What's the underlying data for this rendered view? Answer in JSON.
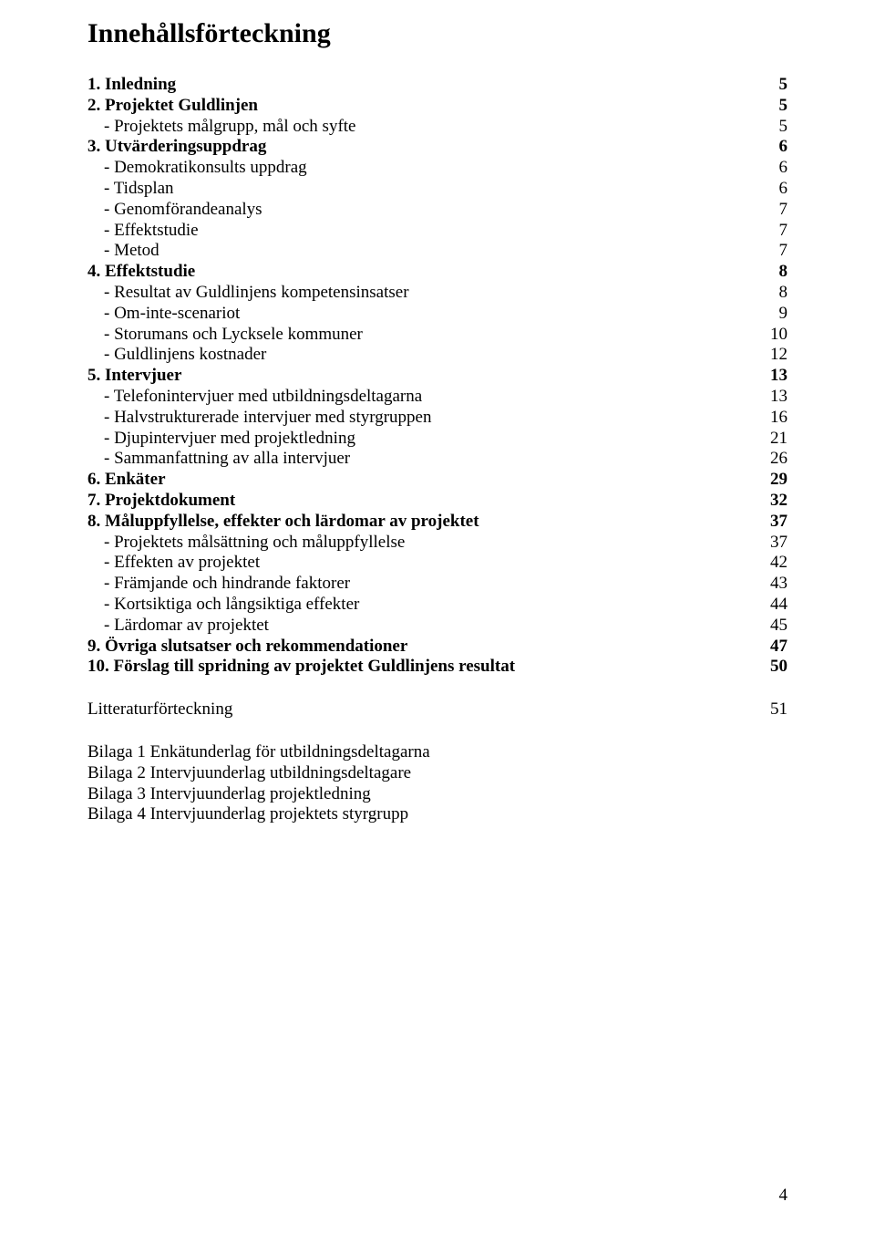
{
  "title": "Innehållsförteckning",
  "toc": [
    {
      "style": "bold",
      "label": "1. Inledning",
      "page": "5"
    },
    {
      "style": "bold",
      "label": "2. Projektet Guldlinjen",
      "page": "5"
    },
    {
      "style": "sub",
      "label": "- Projektets målgrupp, mål och syfte",
      "page": "5"
    },
    {
      "style": "bold",
      "label": "3. Utvärderingsuppdrag",
      "page": "6"
    },
    {
      "style": "sub",
      "label": "- Demokratikonsults uppdrag",
      "page": "6"
    },
    {
      "style": "sub",
      "label": "- Tidsplan",
      "page": "6"
    },
    {
      "style": "sub",
      "label": "- Genomförandeanalys",
      "page": "7"
    },
    {
      "style": "sub",
      "label": "- Effektstudie",
      "page": "7"
    },
    {
      "style": "sub",
      "label": "- Metod",
      "page": "7"
    },
    {
      "style": "bold",
      "label": "4. Effektstudie",
      "page": "8"
    },
    {
      "style": "sub",
      "label": "- Resultat av Guldlinjens kompetensinsatser",
      "page": "8"
    },
    {
      "style": "sub",
      "label": "- Om-inte-scenariot",
      "page": "9"
    },
    {
      "style": "sub",
      "label": "- Storumans och Lycksele kommuner",
      "page": "10"
    },
    {
      "style": "sub",
      "label": "- Guldlinjens kostnader",
      "page": "12"
    },
    {
      "style": "bold",
      "label": "5. Intervjuer",
      "page": "13"
    },
    {
      "style": "sub",
      "label": "- Telefonintervjuer med utbildningsdeltagarna",
      "page": "13"
    },
    {
      "style": "sub",
      "label": "- Halvstrukturerade intervjuer med styrgruppen",
      "page": "16"
    },
    {
      "style": "sub",
      "label": "- Djupintervjuer med projektledning",
      "page": "21"
    },
    {
      "style": "sub",
      "label": "- Sammanfattning av alla intervjuer",
      "page": "26"
    },
    {
      "style": "bold",
      "label": "6. Enkäter",
      "page": "29"
    },
    {
      "style": "bold",
      "label": "7. Projektdokument",
      "page": "32"
    },
    {
      "style": "bold",
      "label": "8. Måluppfyllelse, effekter och lärdomar av projektet",
      "page": "37"
    },
    {
      "style": "sub",
      "label": "- Projektets målsättning och måluppfyllelse",
      "page": "37"
    },
    {
      "style": "sub",
      "label": "- Effekten av projektet",
      "page": "42"
    },
    {
      "style": "sub",
      "label": "- Främjande och hindrande faktorer",
      "page": "43"
    },
    {
      "style": "sub",
      "label": "- Kortsiktiga och långsiktiga effekter",
      "page": "44"
    },
    {
      "style": "sub",
      "label": "- Lärdomar av projektet",
      "page": "45"
    },
    {
      "style": "bold",
      "label": "9. Övriga slutsatser och rekommendationer",
      "page": "47"
    },
    {
      "style": "bold",
      "label": "10. Förslag till spridning av projektet Guldlinjens resultat",
      "page": "50"
    }
  ],
  "lit": {
    "label": "Litteraturförteckning",
    "page": "51"
  },
  "appendices": [
    "Bilaga 1 Enkätunderlag för utbildningsdeltagarna",
    "Bilaga 2 Intervjuunderlag utbildningsdeltagare",
    "Bilaga 3 Intervjuunderlag projektledning",
    "Bilaga 4 Intervjuunderlag projektets styrgrupp"
  ],
  "page_number": "4"
}
